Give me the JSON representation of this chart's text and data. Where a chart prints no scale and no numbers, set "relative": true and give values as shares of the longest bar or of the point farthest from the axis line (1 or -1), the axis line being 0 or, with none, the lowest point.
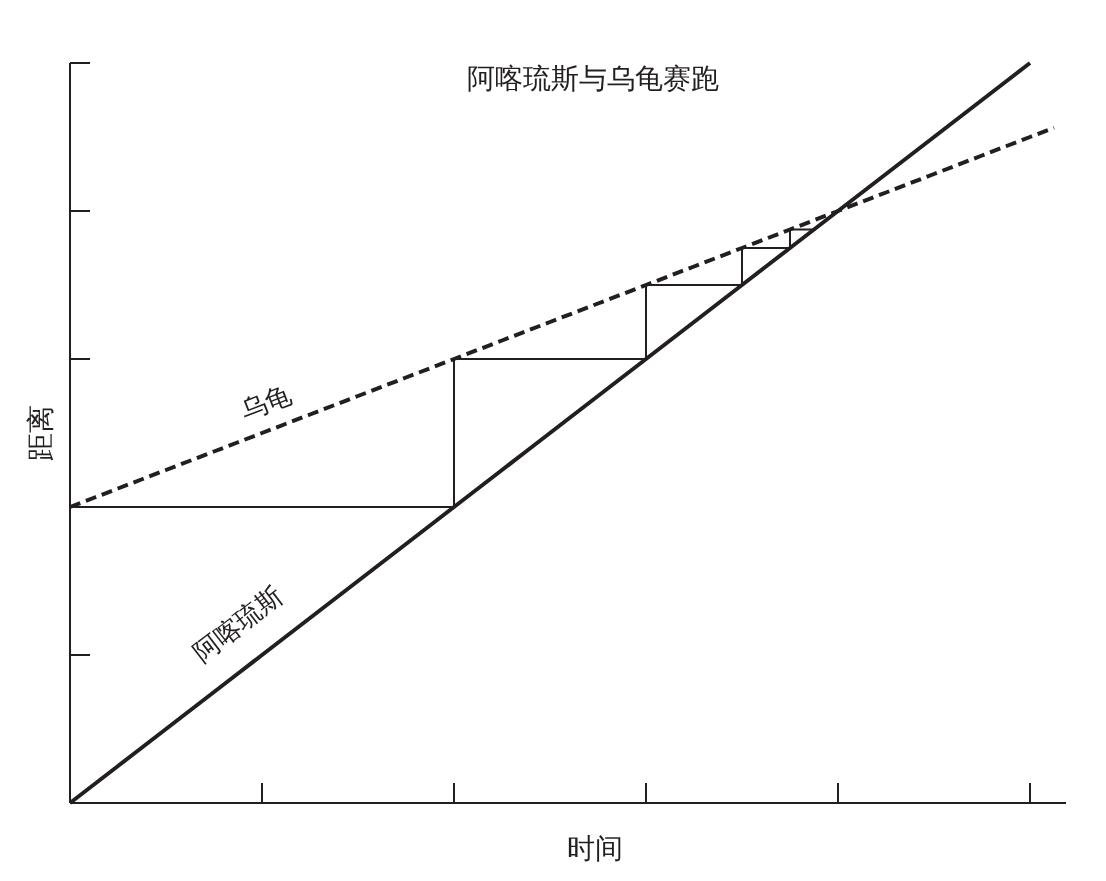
{
  "chart_data": {
    "type": "line",
    "title": "阿喀琉斯与乌龟赛跑",
    "xlabel": "时间",
    "ylabel": "距离",
    "relative": true,
    "categories": [
      null,
      null,
      null,
      null,
      null,
      null,
      null,
      null,
      null,
      null,
      null,
      null,
      null,
      null,
      null,
      null,
      null,
      null,
      null,
      null,
      null,
      null,
      null,
      null,
      null,
      null,
      null,
      null,
      null,
      null,
      null,
      null,
      null,
      null,
      null,
      null,
      null,
      null,
      null,
      null,
      null,
      null
    ],
    "grid": false,
    "legend": false,
    "marker": "none",
    "series": [
      {
        "name": "阿喀琉斯",
        "color": "#231f20",
        "line_style": "solid",
        "values": [
          0,
          0.025,
          0.05,
          0.075,
          0.1,
          0.125,
          0.15,
          0.175,
          0.2,
          0.225,
          0.25,
          0.275,
          0.3,
          0.325,
          0.35,
          0.375,
          0.4,
          0.425,
          0.45,
          0.475,
          0.5,
          0.525,
          0.55,
          0.575,
          0.6,
          0.625,
          0.65,
          0.675,
          0.7,
          0.725,
          0.75,
          0.775,
          0.8,
          0.825,
          0.85,
          0.875,
          0.9,
          0.925,
          0.95,
          0.975,
          1,
          null
        ]
      },
      {
        "name": "乌龟",
        "color": "#231f20",
        "line_style": "dashed",
        "values": [
          0.4,
          0.4125,
          0.425,
          0.4375,
          0.45,
          0.4625,
          0.475,
          0.4875,
          0.5,
          0.5125,
          0.525,
          0.5375,
          0.55,
          0.5625,
          0.575,
          0.5875,
          0.6,
          0.6125,
          0.625,
          0.6375,
          0.65,
          0.6625,
          0.675,
          0.6875,
          0.7,
          0.7125,
          0.725,
          0.7375,
          0.75,
          0.7625,
          0.775,
          0.7875,
          0.8,
          0.8125,
          0.825,
          0.8375,
          0.85,
          0.8625,
          0.875,
          0.8875,
          0.9,
          0.9125
        ]
      },
      {
        "type": "step",
        "color": "#231f20",
        "line_style": "solid",
        "values": [
          0.4,
          0.4,
          0.4,
          0.4,
          0.4,
          0.4,
          0.4,
          0.4,
          0.4,
          0.4,
          0.4,
          0.4,
          0.4,
          0.4,
          0.4,
          0.4,
          0.6,
          0.6,
          0.6,
          0.6,
          0.6,
          0.6,
          0.6,
          0.6,
          0.7,
          0.7,
          0.7,
          0.7,
          0.75,
          0.75,
          0.775,
          0.775,
          null,
          null,
          null,
          null,
          null,
          null,
          null,
          null,
          null,
          null
        ]
      }
    ]
  }
}
